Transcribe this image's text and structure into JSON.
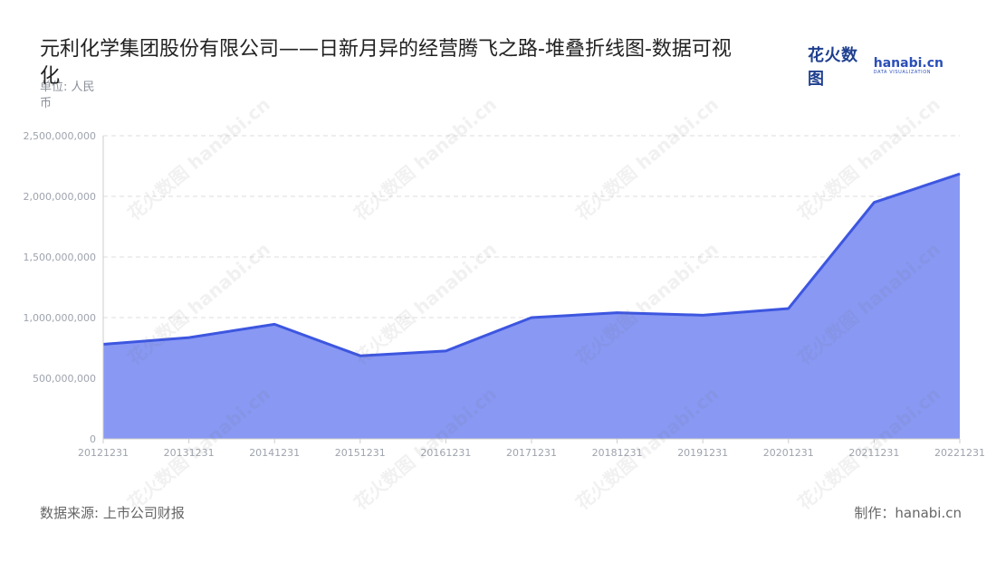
{
  "header": {
    "title": "元利化学集团股份有限公司——日新月异的经营腾飞之路-堆叠折线图-数据可视化",
    "unit": "单位: 人民币"
  },
  "logo": {
    "cn_text": "花火数图",
    "en_text": "hanabi.cn",
    "en_sub": "DATA VISUALIZATION"
  },
  "watermark": {
    "text": "花火数图 hanabi.cn"
  },
  "footer": {
    "source": "数据来源: 上市公司财报",
    "credit": "制作：hanabi.cn"
  },
  "colors": {
    "area_fill": "#8898f3",
    "line": "#3d56e0",
    "grid": "#dddddd",
    "axis": "#cccccc",
    "tick_text": "#9ea3ad"
  },
  "chart_data": {
    "type": "area",
    "stacked": true,
    "categories": [
      "20121231",
      "20131231",
      "20141231",
      "20151231",
      "20161231",
      "20171231",
      "20181231",
      "20191231",
      "20201231",
      "20211231",
      "20221231"
    ],
    "series": [
      {
        "values": [
          780000000,
          835000000,
          945000000,
          685000000,
          725000000,
          1000000000,
          1040000000,
          1020000000,
          1075000000,
          1950000000,
          2185000000
        ]
      }
    ],
    "ylim": [
      0,
      2500000000
    ],
    "yticks": [
      0,
      500000000,
      1000000000,
      1500000000,
      2000000000,
      2500000000
    ],
    "ytick_labels": [
      "0",
      "500,000,000",
      "1,000,000,000",
      "1,500,000,000",
      "2,000,000,000",
      "2,500,000,000"
    ],
    "grid": true,
    "legend": "none"
  }
}
